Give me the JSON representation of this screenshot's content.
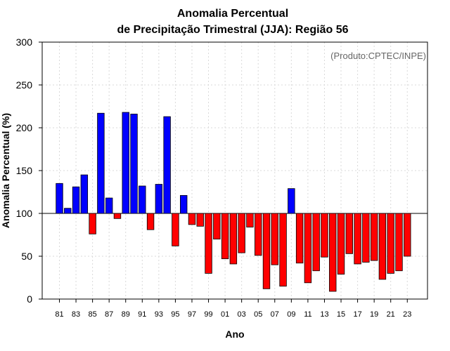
{
  "chart_data": {
    "type": "bar",
    "title": "Anomalia Percentual",
    "subtitle": "de Precipitação Trimestral (JJA): Região 56",
    "xlabel": "Ano",
    "ylabel": "Anomalia Percentual (%)",
    "ylim": [
      0,
      300
    ],
    "yticks": [
      "0",
      "50",
      "100",
      "150",
      "200",
      "250",
      "300"
    ],
    "baseline": 100,
    "grid": true,
    "annotation": "(Produto:CPTEC/INPE)",
    "colors": {
      "above": "#0000ff",
      "below": "#ff0000",
      "border": "#000000"
    },
    "categories": [
      "81",
      "82",
      "83",
      "84",
      "85",
      "86",
      "87",
      "88",
      "89",
      "90",
      "91",
      "92",
      "93",
      "94",
      "95",
      "96",
      "97",
      "98",
      "99",
      "00",
      "01",
      "02",
      "03",
      "04",
      "05",
      "06",
      "07",
      "08",
      "09",
      "10",
      "11",
      "12",
      "13",
      "14",
      "15",
      "16",
      "17",
      "18",
      "19",
      "20",
      "21",
      "22",
      "23"
    ],
    "tick_labels": [
      "81",
      "83",
      "85",
      "87",
      "89",
      "91",
      "93",
      "95",
      "97",
      "99",
      "01",
      "03",
      "05",
      "07",
      "09",
      "11",
      "13",
      "15",
      "17",
      "19",
      "21",
      "23"
    ],
    "values": [
      135,
      106,
      131,
      145,
      76,
      217,
      118,
      94,
      218,
      216,
      132,
      81,
      134,
      213,
      62,
      121,
      87,
      85,
      30,
      70,
      47,
      41,
      54,
      84,
      51,
      12,
      40,
      15,
      129,
      42,
      19,
      33,
      49,
      9,
      29,
      53,
      41,
      43,
      45,
      23,
      30,
      33,
      50
    ]
  }
}
